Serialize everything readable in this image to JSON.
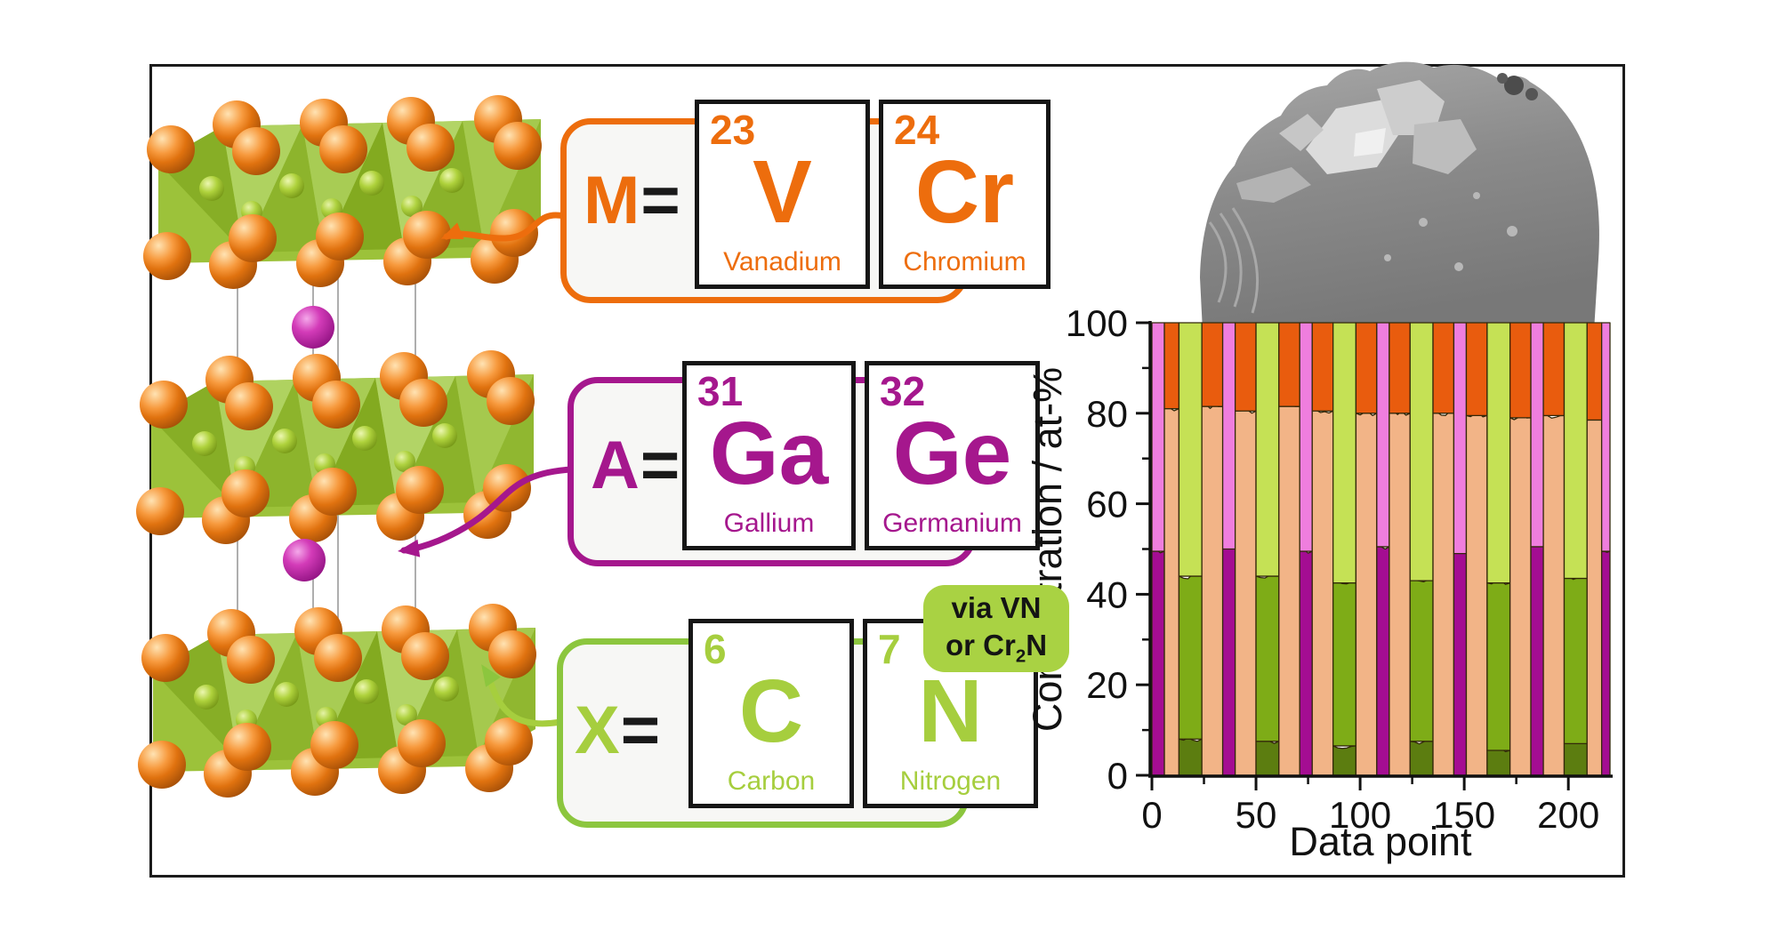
{
  "scheme": {
    "groups": [
      {
        "id": "M",
        "label": "M",
        "equals": "=",
        "color": "#ED6D0D",
        "border_color": "#ED6D0D",
        "elements": [
          {
            "number": "23",
            "symbol": "V",
            "name": "Vanadium"
          },
          {
            "number": "24",
            "symbol": "Cr",
            "name": "Chromium"
          }
        ]
      },
      {
        "id": "A",
        "label": "A",
        "equals": "=",
        "color": "#A5178D",
        "border_color": "#A5178D",
        "elements": [
          {
            "number": "31",
            "symbol": "Ga",
            "name": "Gallium"
          },
          {
            "number": "32",
            "symbol": "Ge",
            "name": "Germanium"
          }
        ]
      },
      {
        "id": "X",
        "label": "X",
        "equals": "=",
        "color": "#A6CE3E",
        "border_color": "#8CC63E",
        "elements": [
          {
            "number": "6",
            "symbol": "C",
            "name": "Carbon"
          },
          {
            "number": "7",
            "symbol": "N",
            "name": "Nitrogen"
          }
        ],
        "badge": {
          "line1": "via VN",
          "line2_pre": "or Cr",
          "line2_sub": "2",
          "line2_post": "N",
          "bg": "#A9D243",
          "text_color": "#141414"
        }
      }
    ]
  },
  "crystal": {
    "octahedra_color": "#9CC23A",
    "m_atom_color": "#E0720F",
    "x_atom_color": "#AFD23C",
    "a_atom_color": "#B81FA0",
    "cell_line_color": "#9a9a9a"
  },
  "sem": {
    "base_color": "#8a8a8a",
    "highlight_color": "#dcdcdc"
  },
  "chart_data": {
    "type": "bar",
    "stacked": true,
    "title": "",
    "xlabel": "Data point",
    "ylabel": "Concentration / at-%",
    "xlim": [
      0,
      220
    ],
    "ylim": [
      0,
      100
    ],
    "x_ticks": [
      0,
      50,
      100,
      150,
      200
    ],
    "x_minor_ticks": [
      25,
      75,
      125,
      175
    ],
    "y_ticks": [
      0,
      20,
      40,
      60,
      80,
      100
    ],
    "y_minor_ticks": [
      10,
      30,
      50,
      70,
      90
    ],
    "grid": false,
    "legend_position": "none",
    "colors": {
      "magenta": "#A40D92",
      "pink": "#EF7EDE",
      "peach": "#F2B487",
      "orange": "#E95C0E",
      "dark_green": "#5C7D10",
      "green": "#7EAC17",
      "light_green": "#C5E155"
    },
    "bands": [
      {
        "x0": 0,
        "x1": 6,
        "stack": [
          [
            "magenta",
            49.5
          ],
          [
            "pink",
            50.5
          ]
        ]
      },
      {
        "x0": 6,
        "x1": 13,
        "stack": [
          [
            "peach",
            81
          ],
          [
            "orange",
            19
          ]
        ]
      },
      {
        "x0": 13,
        "x1": 24,
        "stack": [
          [
            "dark_green",
            8
          ],
          [
            "green",
            36
          ],
          [
            "light_green",
            56
          ]
        ]
      },
      {
        "x0": 24,
        "x1": 34,
        "stack": [
          [
            "peach",
            81.5
          ],
          [
            "orange",
            18.5
          ]
        ]
      },
      {
        "x0": 34,
        "x1": 40,
        "stack": [
          [
            "magenta",
            50
          ],
          [
            "pink",
            50
          ]
        ]
      },
      {
        "x0": 40,
        "x1": 50,
        "stack": [
          [
            "peach",
            80.5
          ],
          [
            "orange",
            19.5
          ]
        ]
      },
      {
        "x0": 50,
        "x1": 61,
        "stack": [
          [
            "dark_green",
            7.5
          ],
          [
            "green",
            36.5
          ],
          [
            "light_green",
            56
          ]
        ]
      },
      {
        "x0": 61,
        "x1": 71,
        "stack": [
          [
            "peach",
            81.5
          ],
          [
            "orange",
            18.5
          ]
        ]
      },
      {
        "x0": 71,
        "x1": 77,
        "stack": [
          [
            "magenta",
            49.5
          ],
          [
            "pink",
            50.5
          ]
        ]
      },
      {
        "x0": 77,
        "x1": 87,
        "stack": [
          [
            "peach",
            80.5
          ],
          [
            "orange",
            19.5
          ]
        ]
      },
      {
        "x0": 87,
        "x1": 98,
        "stack": [
          [
            "dark_green",
            6.5
          ],
          [
            "green",
            36
          ],
          [
            "light_green",
            57.5
          ]
        ]
      },
      {
        "x0": 98,
        "x1": 108,
        "stack": [
          [
            "peach",
            80
          ],
          [
            "orange",
            20
          ]
        ]
      },
      {
        "x0": 108,
        "x1": 114,
        "stack": [
          [
            "magenta",
            50.5
          ],
          [
            "pink",
            49.5
          ]
        ]
      },
      {
        "x0": 114,
        "x1": 124,
        "stack": [
          [
            "peach",
            80
          ],
          [
            "orange",
            20
          ]
        ]
      },
      {
        "x0": 124,
        "x1": 135,
        "stack": [
          [
            "dark_green",
            7.5
          ],
          [
            "green",
            35.5
          ],
          [
            "light_green",
            57
          ]
        ]
      },
      {
        "x0": 135,
        "x1": 145,
        "stack": [
          [
            "peach",
            80
          ],
          [
            "orange",
            20
          ]
        ]
      },
      {
        "x0": 145,
        "x1": 151,
        "stack": [
          [
            "magenta",
            49
          ],
          [
            "pink",
            51
          ]
        ]
      },
      {
        "x0": 151,
        "x1": 161,
        "stack": [
          [
            "peach",
            79.5
          ],
          [
            "orange",
            20.5
          ]
        ]
      },
      {
        "x0": 161,
        "x1": 172,
        "stack": [
          [
            "dark_green",
            5.5
          ],
          [
            "green",
            37
          ],
          [
            "light_green",
            57.5
          ]
        ]
      },
      {
        "x0": 172,
        "x1": 182,
        "stack": [
          [
            "peach",
            79
          ],
          [
            "orange",
            21
          ]
        ]
      },
      {
        "x0": 182,
        "x1": 188,
        "stack": [
          [
            "magenta",
            50.5
          ],
          [
            "pink",
            49.5
          ]
        ]
      },
      {
        "x0": 188,
        "x1": 198,
        "stack": [
          [
            "peach",
            79.5
          ],
          [
            "orange",
            20.5
          ]
        ]
      },
      {
        "x0": 198,
        "x1": 209,
        "stack": [
          [
            "dark_green",
            7
          ],
          [
            "green",
            36.5
          ],
          [
            "light_green",
            56.5
          ]
        ]
      },
      {
        "x0": 209,
        "x1": 216,
        "stack": [
          [
            "peach",
            78.5
          ],
          [
            "orange",
            21.5
          ]
        ]
      },
      {
        "x0": 216,
        "x1": 220,
        "stack": [
          [
            "magenta",
            49.5
          ],
          [
            "pink",
            50.5
          ]
        ]
      }
    ]
  }
}
